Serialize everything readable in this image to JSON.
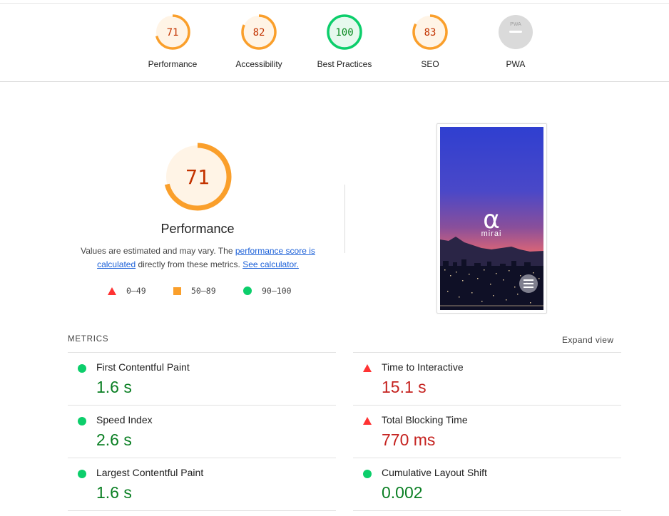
{
  "summary": {
    "gauges": [
      {
        "label": "Performance",
        "score": "71",
        "color": "#fa9f2b",
        "fill": "#fff4e6",
        "text": "#c33300",
        "fraction": 0.71
      },
      {
        "label": "Accessibility",
        "score": "82",
        "color": "#fa9f2b",
        "fill": "#fff4e6",
        "text": "#c33300",
        "fraction": 0.82
      },
      {
        "label": "Best Practices",
        "score": "100",
        "color": "#0cce6b",
        "fill": "#e6f9ee",
        "text": "#088a1f",
        "fraction": 1.0
      },
      {
        "label": "SEO",
        "score": "83",
        "color": "#fa9f2b",
        "fill": "#fff4e6",
        "text": "#c33300",
        "fraction": 0.83
      },
      {
        "label": "PWA",
        "score": "PWA",
        "color": "#c8c8c8",
        "fill": "#dadada",
        "text": "#9e9e9e"
      }
    ]
  },
  "performance": {
    "score": "71",
    "fraction": 0.71,
    "title": "Performance",
    "desc_prefix": "Values are estimated and may vary. The ",
    "link_score": "performance score is calculated",
    "desc_mid": " directly from these metrics. ",
    "link_calc": "See calculator.",
    "legend": [
      {
        "range": "0–49",
        "shape": "triangle",
        "color": "#f33"
      },
      {
        "range": "50–89",
        "shape": "square",
        "color": "#fa9f2b"
      },
      {
        "range": "90–100",
        "shape": "circle",
        "color": "#0cce6b"
      }
    ]
  },
  "screenshot": {
    "logo_text": "mirai"
  },
  "metrics": {
    "title": "METRICS",
    "expand_label": "Expand view",
    "items": [
      {
        "name": "First Contentful Paint",
        "value": "1.6 s",
        "status": "pass"
      },
      {
        "name": "Time to Interactive",
        "value": "15.1 s",
        "status": "fail"
      },
      {
        "name": "Speed Index",
        "value": "2.6 s",
        "status": "pass"
      },
      {
        "name": "Total Blocking Time",
        "value": "770 ms",
        "status": "fail"
      },
      {
        "name": "Largest Contentful Paint",
        "value": "1.6 s",
        "status": "pass"
      },
      {
        "name": "Cumulative Layout Shift",
        "value": "0.002",
        "status": "pass"
      }
    ]
  }
}
